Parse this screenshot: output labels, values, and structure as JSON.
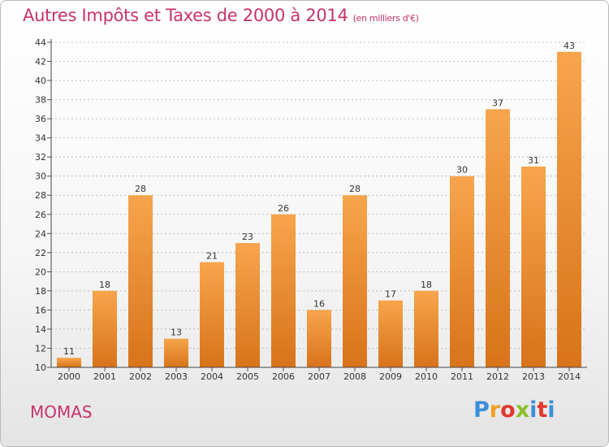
{
  "header": {
    "title": "Autres Impôts et Taxes de 2000 à 2014",
    "subtitle": "(en milliers d'€)"
  },
  "footer": {
    "commune": "MOMAS",
    "logo_text": "Proxiti"
  },
  "colors": {
    "title": "#c8326e",
    "bar_top": "#f7a54c",
    "bar_bottom": "#d8731a",
    "grid": "#b0b0b0"
  },
  "chart_data": {
    "type": "bar",
    "title": "Autres Impôts et Taxes de 2000 à 2014",
    "subtitle": "(en milliers d'€)",
    "categories": [
      "2000",
      "2001",
      "2002",
      "2003",
      "2004",
      "2005",
      "2006",
      "2007",
      "2008",
      "2009",
      "2010",
      "2011",
      "2012",
      "2013",
      "2014"
    ],
    "values": [
      11,
      18,
      28,
      13,
      21,
      23,
      26,
      16,
      28,
      17,
      18,
      30,
      37,
      31,
      43
    ],
    "ylim": [
      10,
      44
    ],
    "yticks": [
      10,
      12,
      14,
      16,
      18,
      20,
      22,
      24,
      26,
      28,
      30,
      32,
      34,
      36,
      38,
      40,
      42,
      44
    ],
    "grid": true,
    "data_labels": true
  }
}
